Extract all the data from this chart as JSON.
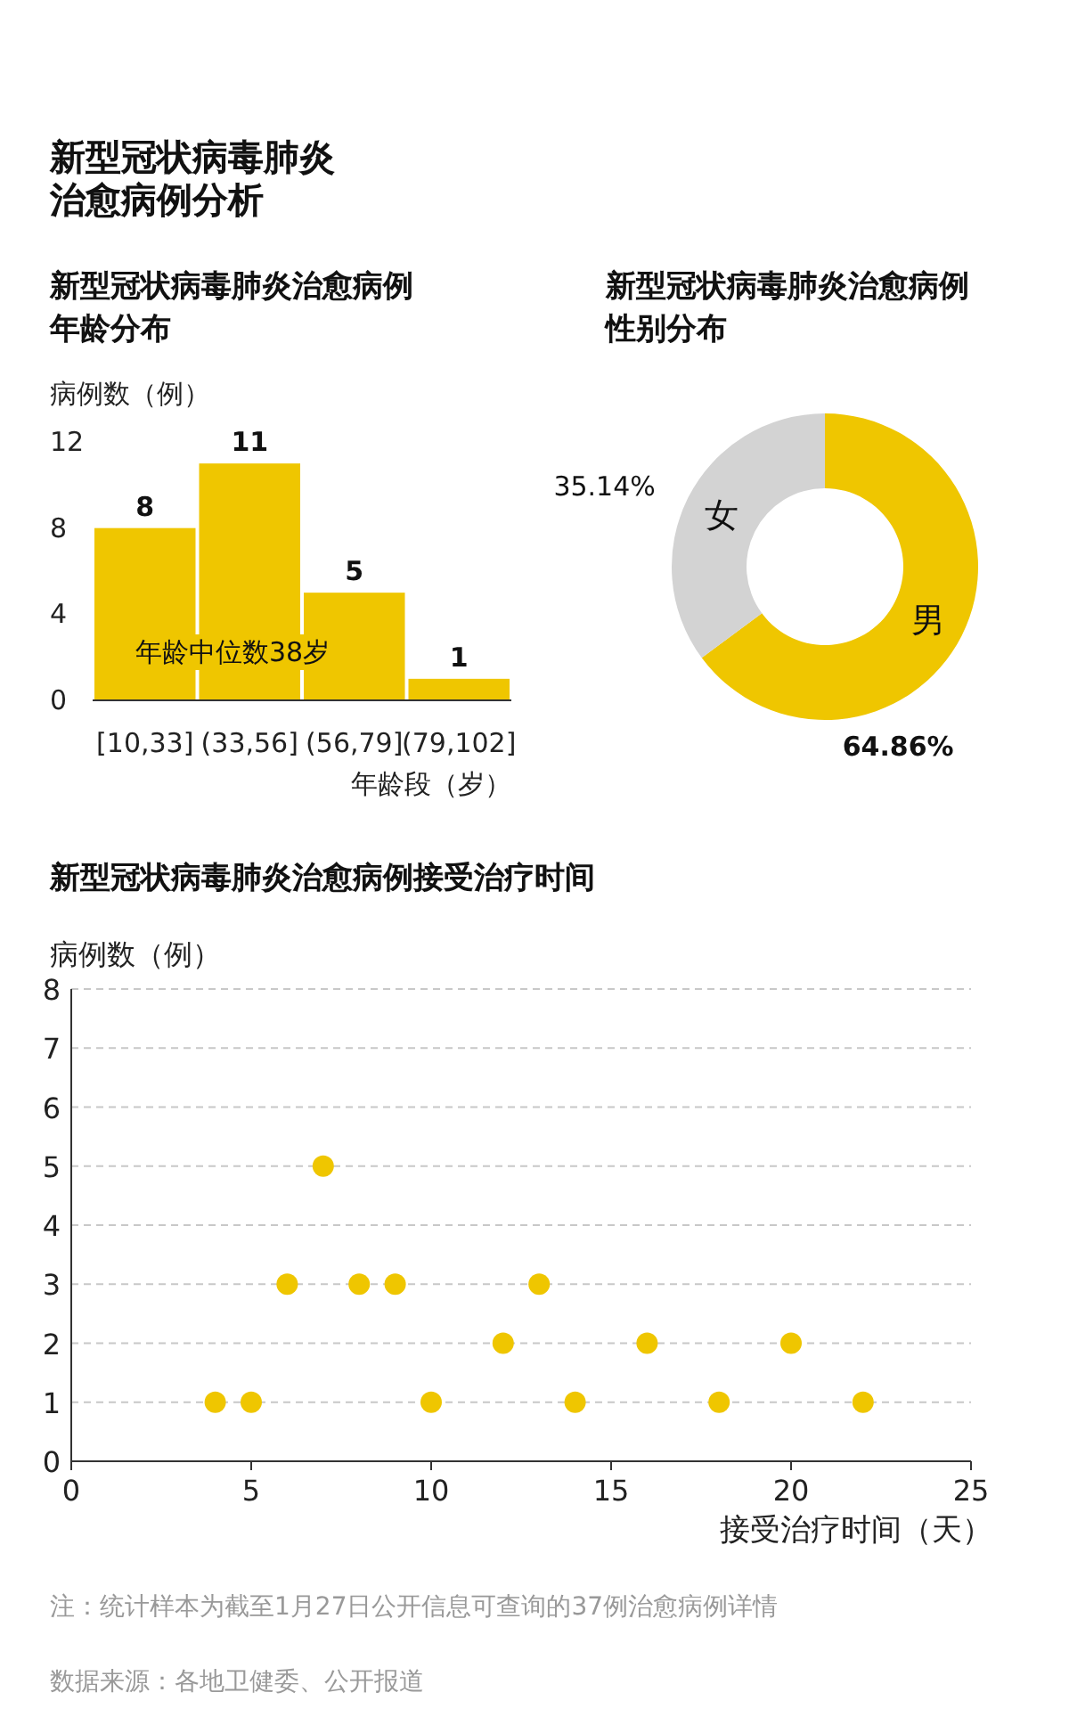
{
  "chart_data": [
    {
      "type": "other",
      "title": "新型冠状病毒肺炎治愈病例分析"
    },
    {
      "type": "bar",
      "title": "新型冠状病毒肺炎治愈病例年龄分布",
      "ylabel": "病例数（例）",
      "xlabel": "年龄段（岁）",
      "categories": [
        "[10,33]",
        "(33,56]",
        "(56,79]",
        "(79,102]"
      ],
      "values": [
        8,
        11,
        5,
        1
      ],
      "color": "#efc600",
      "ylim": [
        0,
        12
      ],
      "yticks": [
        0,
        4,
        8,
        12
      ],
      "data_labels": true,
      "annotations": [
        "年龄中位数38岁"
      ]
    },
    {
      "type": "donut",
      "title": "新型冠状病毒肺炎治愈病例性别分布",
      "categories": [
        "男",
        "女"
      ],
      "values": [
        64.86,
        35.14
      ],
      "colors": [
        "#efc600",
        "#d3d3d3"
      ],
      "value_labels": [
        "64.86%",
        "35.14%"
      ]
    },
    {
      "type": "scatter",
      "title": "新型冠状病毒肺炎治愈病例接受治疗时间",
      "ylabel": "病例数（例）",
      "xlabel": "接受治疗时间（天）",
      "x": [
        4,
        5,
        6,
        7,
        8,
        9,
        10,
        12,
        13,
        14,
        16,
        18,
        20,
        22
      ],
      "values": [
        1,
        1,
        3,
        5,
        3,
        3,
        1,
        2,
        3,
        1,
        2,
        1,
        2,
        1
      ],
      "color": "#efc600",
      "marker": "circle",
      "xlim": [
        0,
        25
      ],
      "xticks": [
        0,
        5,
        10,
        15,
        20,
        25
      ],
      "ylim": [
        0,
        8
      ],
      "yticks": [
        0,
        1,
        2,
        3,
        4,
        5,
        6,
        7,
        8
      ],
      "grid": "y",
      "annotations": [
        "注：统计样本为截至1月27日公开信息可查询的37例治愈病例详情",
        "数据来源：各地卫健委、公开报道"
      ]
    }
  ]
}
